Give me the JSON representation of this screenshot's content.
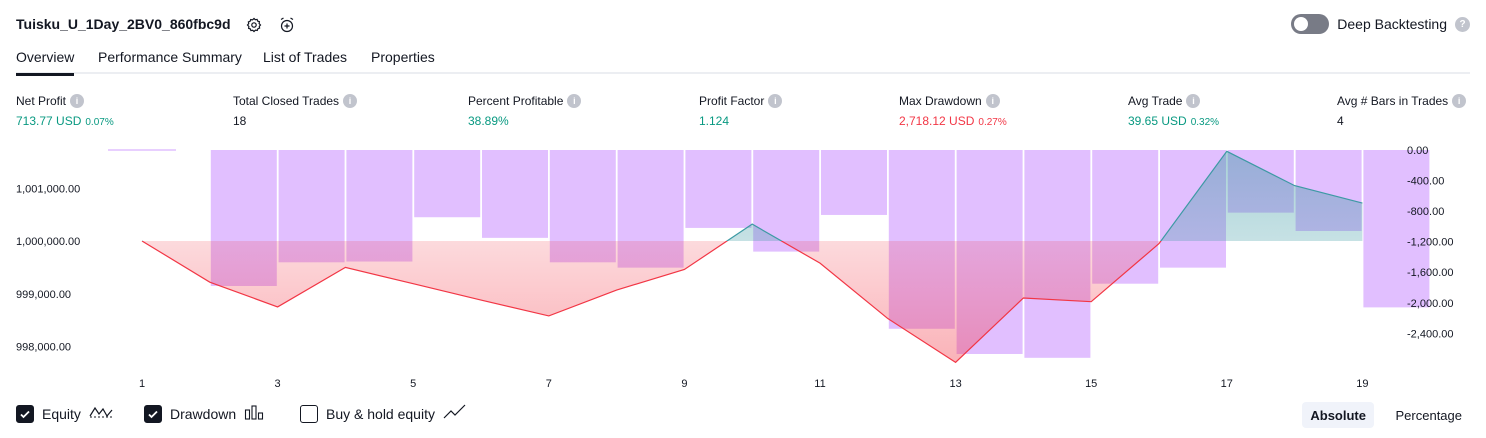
{
  "header": {
    "title": "Tuisku_U_1Day_2BV0_860fbc9d",
    "settings_icon": "gear-icon",
    "snapshot_icon": "alarm-plus-icon",
    "deep_backtesting_label": "Deep Backtesting",
    "deep_backtesting_on": false
  },
  "tabs": [
    {
      "label": "Overview",
      "active": true
    },
    {
      "label": "Performance Summary",
      "active": false
    },
    {
      "label": "List of Trades",
      "active": false
    },
    {
      "label": "Properties",
      "active": false
    }
  ],
  "metrics": [
    {
      "label": "Net Profit",
      "value": "713.77 USD",
      "pct": "0.07%",
      "color": "#089981"
    },
    {
      "label": "Total Closed Trades",
      "value": "18",
      "pct": "",
      "color": "#131722"
    },
    {
      "label": "Percent Profitable",
      "value": "38.89%",
      "pct": "",
      "color": "#089981"
    },
    {
      "label": "Profit Factor",
      "value": "1.124",
      "pct": "",
      "color": "#089981"
    },
    {
      "label": "Max Drawdown",
      "value": "2,718.12 USD",
      "pct": "0.27%",
      "color": "#f23645"
    },
    {
      "label": "Avg Trade",
      "value": "39.65 USD",
      "pct": "0.32%",
      "color": "#089981"
    },
    {
      "label": "Avg # Bars in Trades",
      "value": "4",
      "pct": "",
      "color": "#131722"
    }
  ],
  "chart_data": {
    "type": "line",
    "x_ticks": [
      "1",
      "3",
      "5",
      "7",
      "9",
      "11",
      "13",
      "15",
      "17",
      "19"
    ],
    "left_axis_ticks": [
      "1,001,000.00",
      "1,000,000.00",
      "999,000.00",
      "998,000.00"
    ],
    "right_axis_ticks": [
      "0.00",
      "-400.00",
      "-800.00",
      "-1,200.00",
      "-1,600.00",
      "-2,000.00",
      "-2,400.00"
    ],
    "equity": {
      "name": "Equity",
      "x": [
        1,
        2,
        3,
        4,
        5,
        6,
        7,
        8,
        9,
        10,
        11,
        12,
        13,
        14,
        15,
        16,
        17,
        18,
        19
      ],
      "values": [
        1000000,
        999220,
        998750,
        999500,
        999190,
        998880,
        998580,
        999070,
        999460,
        1000320,
        999580,
        998530,
        997700,
        998920,
        998850,
        999950,
        1001700,
        1001050,
        1000720
      ]
    },
    "drawdown": {
      "name": "Drawdown",
      "x": [
        1,
        2,
        3,
        4,
        5,
        6,
        7,
        8,
        9,
        10,
        11,
        12,
        13,
        14,
        15,
        16,
        17,
        18,
        19
      ],
      "values": [
        0,
        -1780,
        -1470,
        -1460,
        -880,
        -1150,
        -1470,
        -1540,
        -1020,
        -1330,
        -850,
        -2340,
        -2670,
        -2720,
        -1750,
        -1540,
        -820,
        -1060,
        -2060
      ]
    },
    "ylim_left": [
      997700,
      1001700
    ],
    "ylim_right": [
      -2800,
      0
    ],
    "colors": {
      "drawdown_bar": "#e1bfff",
      "equity_down": "#f23645",
      "equity_up": "#3d9aa4"
    }
  },
  "footer": {
    "equity": {
      "label": "Equity",
      "checked": true,
      "icon": "equity-line-icon"
    },
    "drawdown": {
      "label": "Drawdown",
      "checked": true,
      "icon": "bar-chart-icon"
    },
    "buyhold": {
      "label": "Buy & hold equity",
      "checked": false,
      "icon": "trend-line-icon"
    },
    "absolute_label": "Absolute",
    "percentage_label": "Percentage"
  }
}
